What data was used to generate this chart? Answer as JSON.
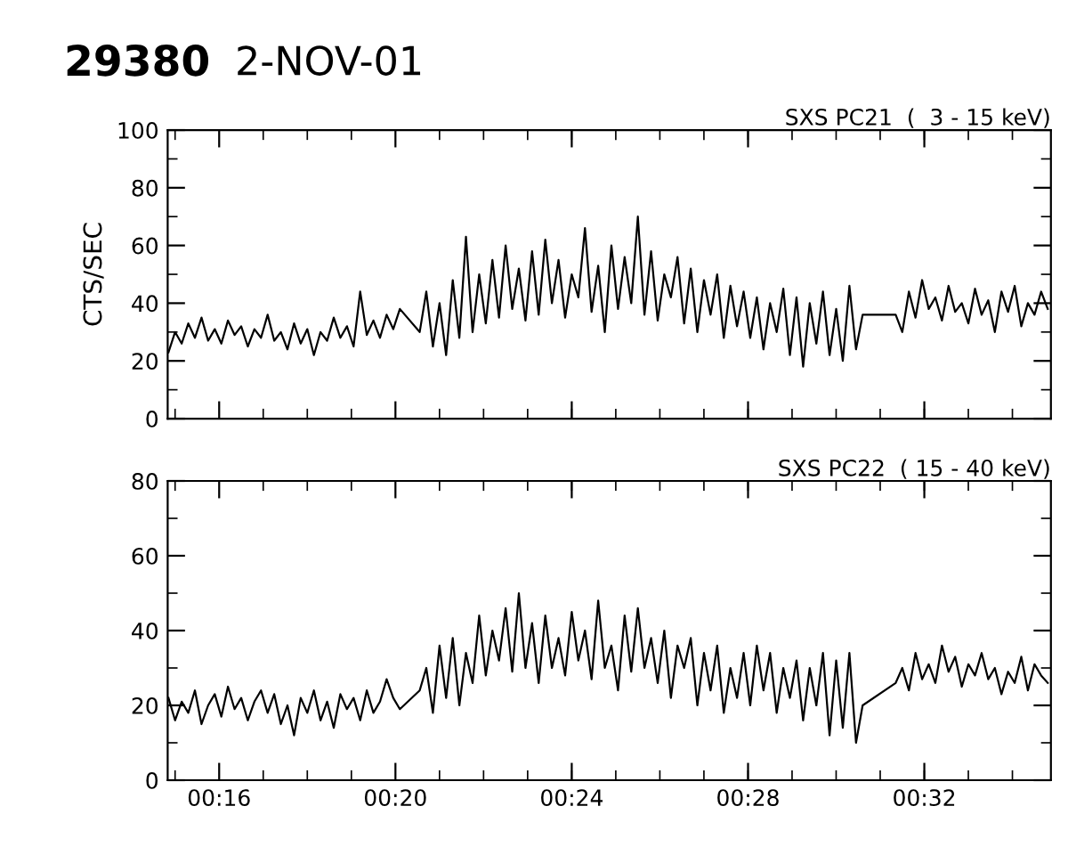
{
  "chart_data": [
    {
      "type": "line",
      "title": "SXS PC21  (  3 - 15 keV)",
      "ylabel": "CTS/SEC",
      "annotations": [
        "29380",
        "2-NOV-01"
      ],
      "xlim": [
        0.2472,
        0.5812
      ],
      "ylim": [
        0,
        100
      ],
      "yticks": [
        0,
        20,
        40,
        60,
        80,
        100
      ],
      "xticks": [
        {
          "value": 0.26667,
          "label": null
        },
        {
          "value": 0.33333,
          "label": null
        },
        {
          "value": 0.4,
          "label": null
        },
        {
          "value": 0.46667,
          "label": null
        },
        {
          "value": 0.53333,
          "label": null
        }
      ],
      "tick_labels": "y",
      "marker": "none",
      "line_style": "solid",
      "series": [
        {
          "color": "#000000",
          "x": [
            0.2475,
            0.25,
            0.2525,
            0.255,
            0.2575,
            0.26,
            0.2625,
            0.265,
            0.2675,
            0.27,
            0.2725,
            0.275,
            0.2775,
            0.28,
            0.2825,
            0.285,
            0.2875,
            0.29,
            0.2925,
            0.295,
            0.2975,
            0.3,
            0.3025,
            0.305,
            0.3075,
            0.31,
            0.3125,
            0.315,
            0.3175,
            0.32,
            0.3225,
            0.325,
            0.3275,
            0.33,
            0.3325,
            0.335,
            0.3425,
            0.345,
            0.3475,
            0.35,
            0.3525,
            0.355,
            0.3575,
            0.36,
            0.3625,
            0.365,
            0.3675,
            0.37,
            0.3725,
            0.375,
            0.3775,
            0.38,
            0.3825,
            0.385,
            0.3875,
            0.39,
            0.3925,
            0.395,
            0.3975,
            0.4,
            0.4025,
            0.405,
            0.4075,
            0.41,
            0.4125,
            0.415,
            0.4175,
            0.42,
            0.4225,
            0.425,
            0.4275,
            0.43,
            0.4325,
            0.435,
            0.4375,
            0.44,
            0.4425,
            0.445,
            0.4475,
            0.45,
            0.4525,
            0.455,
            0.4575,
            0.46,
            0.4625,
            0.465,
            0.4675,
            0.47,
            0.4725,
            0.475,
            0.4775,
            0.48,
            0.4825,
            0.485,
            0.4875,
            0.49,
            0.4925,
            0.495,
            0.4975,
            0.5,
            0.5025,
            0.505,
            0.5075,
            0.51,
            0.5225,
            0.525,
            0.5275,
            0.53,
            0.5325,
            0.535,
            0.5375,
            0.54,
            0.5425,
            0.545,
            0.5475,
            0.55,
            0.5525,
            0.555,
            0.5575,
            0.56,
            0.5625,
            0.565,
            0.5675,
            0.57,
            0.5725,
            0.575,
            0.5775,
            0.58
          ],
          "values": [
            23,
            30,
            26,
            33,
            28,
            35,
            27,
            31,
            26,
            34,
            29,
            32,
            25,
            31,
            28,
            36,
            27,
            30,
            24,
            33,
            26,
            31,
            22,
            30,
            27,
            35,
            28,
            32,
            25,
            44,
            29,
            34,
            28,
            36,
            31,
            38,
            30,
            44,
            25,
            40,
            22,
            48,
            28,
            63,
            30,
            50,
            33,
            55,
            35,
            60,
            38,
            52,
            34,
            58,
            36,
            62,
            40,
            55,
            35,
            50,
            42,
            66,
            37,
            53,
            30,
            60,
            38,
            56,
            40,
            70,
            36,
            58,
            34,
            50,
            42,
            56,
            33,
            52,
            30,
            48,
            36,
            50,
            28,
            46,
            32,
            44,
            28,
            42,
            24,
            40,
            30,
            45,
            22,
            42,
            18,
            40,
            26,
            44,
            22,
            38,
            20,
            46,
            24,
            36,
            36,
            30,
            44,
            35,
            48,
            38,
            42,
            34,
            46,
            37,
            40,
            33,
            45,
            36,
            41,
            30,
            44,
            37,
            46,
            32,
            40,
            36,
            44,
            38
          ]
        }
      ]
    },
    {
      "type": "line",
      "title": "SXS PC22  ( 15 - 40 keV)",
      "xlim": [
        0.2472,
        0.5812
      ],
      "ylim": [
        0,
        80
      ],
      "yticks": [
        0,
        20,
        40,
        60,
        80
      ],
      "xticks": [
        {
          "value": 0.26667,
          "label": "00:16"
        },
        {
          "value": 0.33333,
          "label": "00:20"
        },
        {
          "value": 0.4,
          "label": "00:24"
        },
        {
          "value": 0.46667,
          "label": "00:28"
        },
        {
          "value": 0.53333,
          "label": "00:32"
        }
      ],
      "marker": "none",
      "line_style": "solid",
      "series": [
        {
          "color": "#000000",
          "x": [
            0.2475,
            0.25,
            0.2525,
            0.255,
            0.2575,
            0.26,
            0.2625,
            0.265,
            0.2675,
            0.27,
            0.2725,
            0.275,
            0.2775,
            0.28,
            0.2825,
            0.285,
            0.2875,
            0.29,
            0.2925,
            0.295,
            0.2975,
            0.3,
            0.3025,
            0.305,
            0.3075,
            0.31,
            0.3125,
            0.315,
            0.3175,
            0.32,
            0.3225,
            0.325,
            0.3275,
            0.33,
            0.3325,
            0.335,
            0.3425,
            0.345,
            0.3475,
            0.35,
            0.3525,
            0.355,
            0.3575,
            0.36,
            0.3625,
            0.365,
            0.3675,
            0.37,
            0.3725,
            0.375,
            0.3775,
            0.38,
            0.3825,
            0.385,
            0.3875,
            0.39,
            0.3925,
            0.395,
            0.3975,
            0.4,
            0.4025,
            0.405,
            0.4075,
            0.41,
            0.4125,
            0.415,
            0.4175,
            0.42,
            0.4225,
            0.425,
            0.4275,
            0.43,
            0.4325,
            0.435,
            0.4375,
            0.44,
            0.4425,
            0.445,
            0.4475,
            0.45,
            0.4525,
            0.455,
            0.4575,
            0.46,
            0.4625,
            0.465,
            0.4675,
            0.47,
            0.4725,
            0.475,
            0.4775,
            0.48,
            0.4825,
            0.485,
            0.4875,
            0.49,
            0.4925,
            0.495,
            0.4975,
            0.5,
            0.5025,
            0.505,
            0.5075,
            0.51,
            0.5225,
            0.525,
            0.5275,
            0.53,
            0.5325,
            0.535,
            0.5375,
            0.54,
            0.5425,
            0.545,
            0.5475,
            0.55,
            0.5525,
            0.555,
            0.5575,
            0.56,
            0.5625,
            0.565,
            0.5675,
            0.57,
            0.5725,
            0.575,
            0.5775,
            0.58
          ],
          "values": [
            22,
            16,
            21,
            18,
            24,
            15,
            20,
            23,
            17,
            25,
            19,
            22,
            16,
            21,
            24,
            18,
            23,
            15,
            20,
            12,
            22,
            18,
            24,
            16,
            21,
            14,
            23,
            19,
            22,
            16,
            24,
            18,
            21,
            27,
            22,
            19,
            24,
            30,
            18,
            36,
            22,
            38,
            20,
            34,
            26,
            44,
            28,
            40,
            32,
            46,
            29,
            50,
            30,
            42,
            26,
            44,
            30,
            38,
            28,
            45,
            32,
            40,
            27,
            48,
            30,
            36,
            24,
            44,
            29,
            46,
            30,
            38,
            26,
            40,
            22,
            36,
            30,
            38,
            20,
            34,
            24,
            36,
            18,
            30,
            22,
            34,
            20,
            36,
            24,
            34,
            18,
            30,
            22,
            32,
            16,
            30,
            20,
            34,
            12,
            32,
            14,
            34,
            10,
            20,
            26,
            30,
            24,
            34,
            27,
            31,
            26,
            36,
            29,
            33,
            25,
            31,
            28,
            34,
            27,
            30,
            23,
            29,
            26,
            33,
            24,
            31,
            28,
            26
          ]
        }
      ]
    }
  ]
}
